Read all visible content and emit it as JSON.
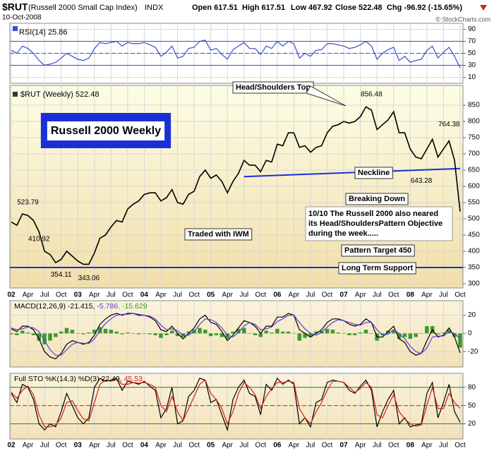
{
  "header": {
    "symbol": "$RUT",
    "name": "(Russell 2000 Small Cap Index)",
    "exchange": "INDX",
    "date": "10-Oct-2008",
    "open": "Open 617.51",
    "high": "High 617.51",
    "low": "Low 467.92",
    "close": "Close 522.48",
    "change": "Chg -96.92 (-15.65%)",
    "credit": "© StockCharts.com"
  },
  "chart_data": {
    "type": "line",
    "title": "Russell 2000 Weekly",
    "x": [
      "2002-01",
      "2002-02",
      "2002-03",
      "2002-04",
      "2002-05",
      "2002-06",
      "2002-07",
      "2002-08",
      "2002-09",
      "2002-10",
      "2002-11",
      "2002-12",
      "2003-01",
      "2003-02",
      "2003-03",
      "2003-04",
      "2003-05",
      "2003-06",
      "2003-07",
      "2003-08",
      "2003-09",
      "2003-10",
      "2003-11",
      "2003-12",
      "2004-01",
      "2004-02",
      "2004-03",
      "2004-04",
      "2004-05",
      "2004-06",
      "2004-07",
      "2004-08",
      "2004-09",
      "2004-10",
      "2004-11",
      "2004-12",
      "2005-01",
      "2005-02",
      "2005-03",
      "2005-04",
      "2005-05",
      "2005-06",
      "2005-07",
      "2005-08",
      "2005-09",
      "2005-10",
      "2005-11",
      "2005-12",
      "2006-01",
      "2006-02",
      "2006-03",
      "2006-04",
      "2006-05",
      "2006-06",
      "2006-07",
      "2006-08",
      "2006-09",
      "2006-10",
      "2006-11",
      "2006-12",
      "2007-01",
      "2007-02",
      "2007-03",
      "2007-04",
      "2007-05",
      "2007-06",
      "2007-07",
      "2007-08",
      "2007-09",
      "2007-10",
      "2007-11",
      "2007-12",
      "2008-01",
      "2008-02",
      "2008-03",
      "2008-04",
      "2008-05",
      "2008-06",
      "2008-07",
      "2008-08",
      "2008-09",
      "2008-10"
    ],
    "xticks": [
      {
        "value": "2002-01",
        "label": "02"
      },
      {
        "value": "2002-04",
        "label": "Apr"
      },
      {
        "value": "2002-07",
        "label": "Jul"
      },
      {
        "value": "2002-10",
        "label": "Oct"
      },
      {
        "value": "2003-01",
        "label": "03"
      },
      {
        "value": "2003-04",
        "label": "Apr"
      },
      {
        "value": "2003-07",
        "label": "Jul"
      },
      {
        "value": "2003-10",
        "label": "Oct"
      },
      {
        "value": "2004-01",
        "label": "04"
      },
      {
        "value": "2004-04",
        "label": "Apr"
      },
      {
        "value": "2004-07",
        "label": "Jul"
      },
      {
        "value": "2004-10",
        "label": "Oct"
      },
      {
        "value": "2005-01",
        "label": "05"
      },
      {
        "value": "2005-04",
        "label": "Apr"
      },
      {
        "value": "2005-07",
        "label": "Jul"
      },
      {
        "value": "2005-10",
        "label": "Oct"
      },
      {
        "value": "2006-01",
        "label": "06"
      },
      {
        "value": "2006-04",
        "label": "Apr"
      },
      {
        "value": "2006-07",
        "label": "Jul"
      },
      {
        "value": "2006-10",
        "label": "Oct"
      },
      {
        "value": "2007-01",
        "label": "07"
      },
      {
        "value": "2007-04",
        "label": "Apr"
      },
      {
        "value": "2007-07",
        "label": "Jul"
      },
      {
        "value": "2007-10",
        "label": "Oct"
      },
      {
        "value": "2008-01",
        "label": "08"
      },
      {
        "value": "2008-04",
        "label": "Apr"
      },
      {
        "value": "2008-07",
        "label": "Jul"
      },
      {
        "value": "2008-10",
        "label": "Oct"
      }
    ],
    "grid": true,
    "panels": [
      {
        "label": "RSI(14) 25.86",
        "ylim": [
          0,
          100
        ],
        "yticks": [
          10,
          30,
          50,
          70,
          90
        ],
        "bands": [
          30,
          70
        ],
        "midline": 50,
        "series": [
          {
            "color": "#3a4fc9",
            "values": [
              55,
              50,
              62,
              58,
              50,
              38,
              30,
              32,
              35,
              42,
              50,
              45,
              40,
              38,
              42,
              58,
              68,
              66,
              68,
              70,
              62,
              68,
              66,
              66,
              68,
              64,
              60,
              45,
              52,
              62,
              42,
              45,
              58,
              60,
              70,
              72,
              55,
              58,
              48,
              40,
              56,
              62,
              68,
              58,
              58,
              48,
              62,
              58,
              70,
              62,
              70,
              66,
              42,
              50,
              45,
              55,
              56,
              66,
              66,
              64,
              62,
              58,
              60,
              64,
              70,
              62,
              40,
              50,
              56,
              60,
              38,
              45,
              35,
              38,
              40,
              55,
              62,
              42,
              52,
              60,
              45,
              25.86
            ]
          }
        ]
      },
      {
        "label": "$RUT (Weekly) 522.48",
        "ylim": [
          287,
          911
        ],
        "yticks": [
          300,
          350,
          400,
          450,
          500,
          550,
          600,
          650,
          700,
          750,
          800,
          850
        ],
        "series": [
          {
            "color": "#000000",
            "values": [
              490,
              480,
              515,
              510,
              495,
              460,
              400,
              390,
              365,
              375,
              400,
              385,
              370,
              360,
              360,
              395,
              440,
              450,
              475,
              495,
              490,
              530,
              545,
              555,
              575,
              580,
              580,
              555,
              565,
              590,
              550,
              545,
              575,
              585,
              630,
              650,
              625,
              635,
              615,
              580,
              615,
              640,
              680,
              665,
              665,
              645,
              680,
              675,
              730,
              725,
              765,
              765,
              720,
              725,
              705,
              720,
              725,
              765,
              785,
              790,
              800,
              795,
              800,
              815,
              845,
              835,
              775,
              790,
              805,
              830,
              765,
              765,
              715,
              690,
              685,
              715,
              745,
              690,
              715,
              740,
              680,
              522.48
            ]
          }
        ],
        "peaks": [
          {
            "x": "2002-04",
            "value": 523.79
          },
          {
            "x": "2002-06",
            "value": 410.92
          },
          {
            "x": "2002-10",
            "value": 354.11
          },
          {
            "x": "2003-03",
            "value": 343.06
          },
          {
            "x": "2007-06",
            "value": 856.48
          },
          {
            "x": "2008-08",
            "value": 764.38
          },
          {
            "x": "2008-03",
            "value": 643.28
          }
        ],
        "support": 350,
        "neckline": [
          {
            "x": "2005-07",
            "value": 630
          },
          {
            "x": "2008-10",
            "value": 655
          }
        ],
        "notes": [
          "Head/Shoulders Top",
          "Neckline",
          "Breaking Down",
          "Traded with IWM",
          "Pattern Target 450",
          "Long Term Support"
        ],
        "commentary": [
          "10/10  The Russell 2000 also neared",
          "its Head/ShouldersPattern Objective",
          "during the week....."
        ]
      },
      {
        "label_parts": [
          {
            "text": "MACD(12,26,9) -21.415, ",
            "color": "#000000"
          },
          {
            "text": "-5.786",
            "color": "#5a3fd6"
          },
          {
            "text": ", -15.629",
            "color": "#3c9a2f"
          }
        ],
        "ylim": [
          -37,
          36
        ],
        "yticks": [
          -20,
          0,
          20
        ],
        "histogram": {
          "color": "#3c9a2f",
          "values": [
            -1,
            -2,
            3,
            1,
            -2,
            -8,
            -12,
            -8,
            -4,
            2,
            6,
            4,
            0,
            -1,
            1,
            4,
            7,
            5,
            4,
            2,
            -1,
            1,
            0,
            -1,
            0,
            -1,
            -2,
            -5,
            -2,
            3,
            -3,
            -4,
            2,
            4,
            6,
            4,
            -3,
            -2,
            -4,
            -6,
            2,
            5,
            6,
            0,
            -2,
            -4,
            3,
            1,
            5,
            2,
            2,
            0,
            -8,
            -5,
            -4,
            2,
            3,
            5,
            4,
            1,
            0,
            -2,
            -2,
            1,
            4,
            0,
            -8,
            -2,
            3,
            4,
            -6,
            -4,
            -6,
            -4,
            0,
            8,
            8,
            -1,
            1,
            4,
            -4,
            -15.629
          ]
        },
        "series": [
          {
            "color": "#000000",
            "values": [
              5,
              2,
              8,
              8,
              4,
              -6,
              -20,
              -26,
              -28,
              -22,
              -12,
              -8,
              -10,
              -12,
              -10,
              -2,
              10,
              16,
              20,
              22,
              20,
              22,
              22,
              20,
              20,
              18,
              14,
              4,
              2,
              8,
              0,
              -6,
              0,
              6,
              16,
              20,
              12,
              10,
              2,
              -8,
              -2,
              6,
              14,
              12,
              8,
              0,
              8,
              8,
              18,
              18,
              22,
              20,
              4,
              0,
              -4,
              0,
              4,
              12,
              16,
              16,
              14,
              10,
              8,
              10,
              16,
              12,
              -4,
              -4,
              2,
              8,
              -6,
              -10,
              -20,
              -24,
              -22,
              -8,
              4,
              -4,
              -2,
              6,
              -4,
              -21.415
            ]
          },
          {
            "color": "#5a3fd6",
            "values": [
              6,
              4,
              5,
              7,
              6,
              2,
              -8,
              -18,
              -24,
              -24,
              -18,
              -12,
              -10,
              -11,
              -11,
              -6,
              3,
              11,
              16,
              20,
              21,
              21,
              22,
              21,
              20,
              19,
              16,
              9,
              4,
              5,
              3,
              -2,
              -2,
              2,
              10,
              16,
              15,
              12,
              6,
              -2,
              -4,
              1,
              8,
              12,
              10,
              4,
              5,
              7,
              13,
              16,
              20,
              20,
              12,
              5,
              0,
              -2,
              1,
              7,
              12,
              15,
              14,
              12,
              10,
              9,
              12,
              12,
              4,
              -2,
              -1,
              4,
              0,
              -6,
              -14,
              -20,
              -22,
              -16,
              -4,
              -3,
              -3,
              2,
              0,
              -5.786
            ]
          }
        ]
      },
      {
        "label_parts": [
          {
            "text": "Full STO %K(14,3) %D(3) 22.49, ",
            "color": "#000000"
          },
          {
            "text": "45.53",
            "color": "#d62020"
          }
        ],
        "ylim": [
          -5,
          103
        ],
        "yticks": [
          20,
          50,
          80
        ],
        "bands": [
          20,
          80
        ],
        "midline": 50,
        "series": [
          {
            "color": "#000000",
            "values": [
              70,
              55,
              85,
              80,
              60,
              20,
              10,
              20,
              15,
              40,
              70,
              50,
              30,
              20,
              30,
              80,
              95,
              90,
              92,
              95,
              75,
              90,
              88,
              85,
              90,
              82,
              75,
              30,
              45,
              80,
              20,
              25,
              65,
              75,
              95,
              92,
              55,
              60,
              35,
              10,
              60,
              80,
              92,
              70,
              65,
              35,
              85,
              75,
              95,
              85,
              92,
              85,
              20,
              30,
              15,
              55,
              60,
              88,
              92,
              90,
              88,
              75,
              70,
              82,
              92,
              75,
              15,
              40,
              60,
              75,
              20,
              30,
              15,
              18,
              20,
              70,
              88,
              30,
              55,
              85,
              40,
              22.49
            ]
          },
          {
            "color": "#d62020",
            "values": [
              72,
              62,
              75,
              82,
              68,
              35,
              15,
              15,
              18,
              30,
              55,
              58,
              42,
              28,
              25,
              55,
              85,
              92,
              90,
              93,
              85,
              85,
              88,
              87,
              88,
              85,
              80,
              50,
              40,
              65,
              40,
              25,
              45,
              65,
              85,
              92,
              70,
              60,
              45,
              20,
              40,
              70,
              88,
              80,
              68,
              45,
              65,
              78,
              88,
              88,
              90,
              88,
              45,
              30,
              20,
              40,
              55,
              75,
              90,
              90,
              88,
              80,
              72,
              78,
              88,
              80,
              35,
              30,
              50,
              68,
              40,
              28,
              20,
              16,
              18,
              50,
              80,
              45,
              45,
              70,
              55,
              45.53
            ]
          }
        ]
      }
    ]
  }
}
